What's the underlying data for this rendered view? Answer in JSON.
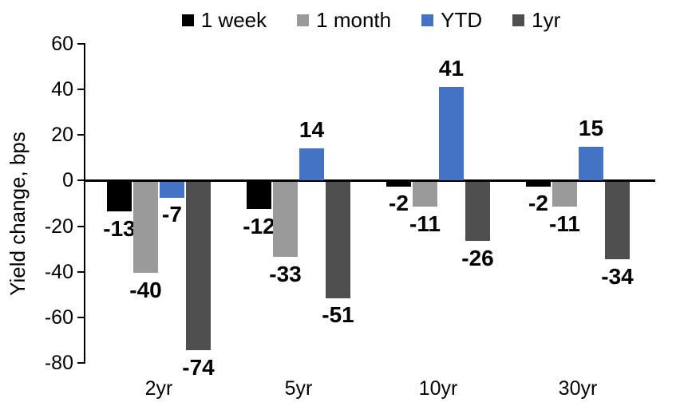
{
  "chart_data": {
    "type": "bar",
    "title": "",
    "xlabel": "",
    "ylabel": "Yield change, bps",
    "categories": [
      "2yr",
      "5yr",
      "10yr",
      "30yr"
    ],
    "series": [
      {
        "name": "1 week",
        "color": "#000000",
        "values": [
          -13,
          -12,
          -2,
          -2
        ]
      },
      {
        "name": "1 month",
        "color": "#9A9A9A",
        "values": [
          -40,
          -33,
          -11,
          -11
        ]
      },
      {
        "name": "YTD",
        "color": "#4472C4",
        "values": [
          -7,
          14,
          41,
          15
        ]
      },
      {
        "name": "1yr",
        "color": "#4F4F4F",
        "values": [
          -74,
          -51,
          -26,
          -34
        ]
      }
    ],
    "ylim": [
      -80,
      60
    ],
    "y_ticks": [
      60,
      40,
      20,
      0,
      -20,
      -40,
      -60,
      -80
    ],
    "grid": false,
    "legend_position": "top",
    "data_labels": true,
    "axis_color": "#000000"
  }
}
